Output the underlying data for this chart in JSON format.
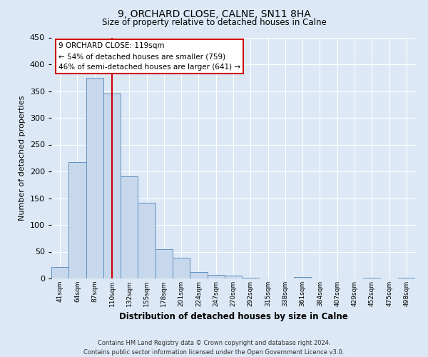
{
  "title": "9, ORCHARD CLOSE, CALNE, SN11 8HA",
  "subtitle": "Size of property relative to detached houses in Calne",
  "xlabel": "Distribution of detached houses by size in Calne",
  "ylabel": "Number of detached properties",
  "bar_color": "#c8d8ec",
  "bar_edge_color": "#6090c0",
  "background_color": "#dce8f5",
  "grid_color": "#ffffff",
  "fig_background": "#dce8f5",
  "bin_labels": [
    "41sqm",
    "64sqm",
    "87sqm",
    "110sqm",
    "132sqm",
    "155sqm",
    "178sqm",
    "201sqm",
    "224sqm",
    "247sqm",
    "270sqm",
    "292sqm",
    "315sqm",
    "338sqm",
    "361sqm",
    "384sqm",
    "407sqm",
    "429sqm",
    "452sqm",
    "475sqm",
    "498sqm"
  ],
  "bar_heights": [
    22,
    217,
    375,
    345,
    191,
    142,
    55,
    39,
    12,
    7,
    5,
    2,
    0,
    0,
    3,
    0,
    0,
    0,
    2,
    0,
    2
  ],
  "property_line_color": "#cc0000",
  "property_line_index": 3.5,
  "annotation_text": "9 ORCHARD CLOSE: 119sqm\n← 54% of detached houses are smaller (759)\n46% of semi-detached houses are larger (641) →",
  "annotation_box_color": "#ffffff",
  "annotation_box_edge": "#cc0000",
  "ylim": [
    0,
    450
  ],
  "yticks": [
    0,
    50,
    100,
    150,
    200,
    250,
    300,
    350,
    400,
    450
  ],
  "footer_line1": "Contains HM Land Registry data © Crown copyright and database right 2024.",
  "footer_line2": "Contains public sector information licensed under the Open Government Licence v3.0."
}
